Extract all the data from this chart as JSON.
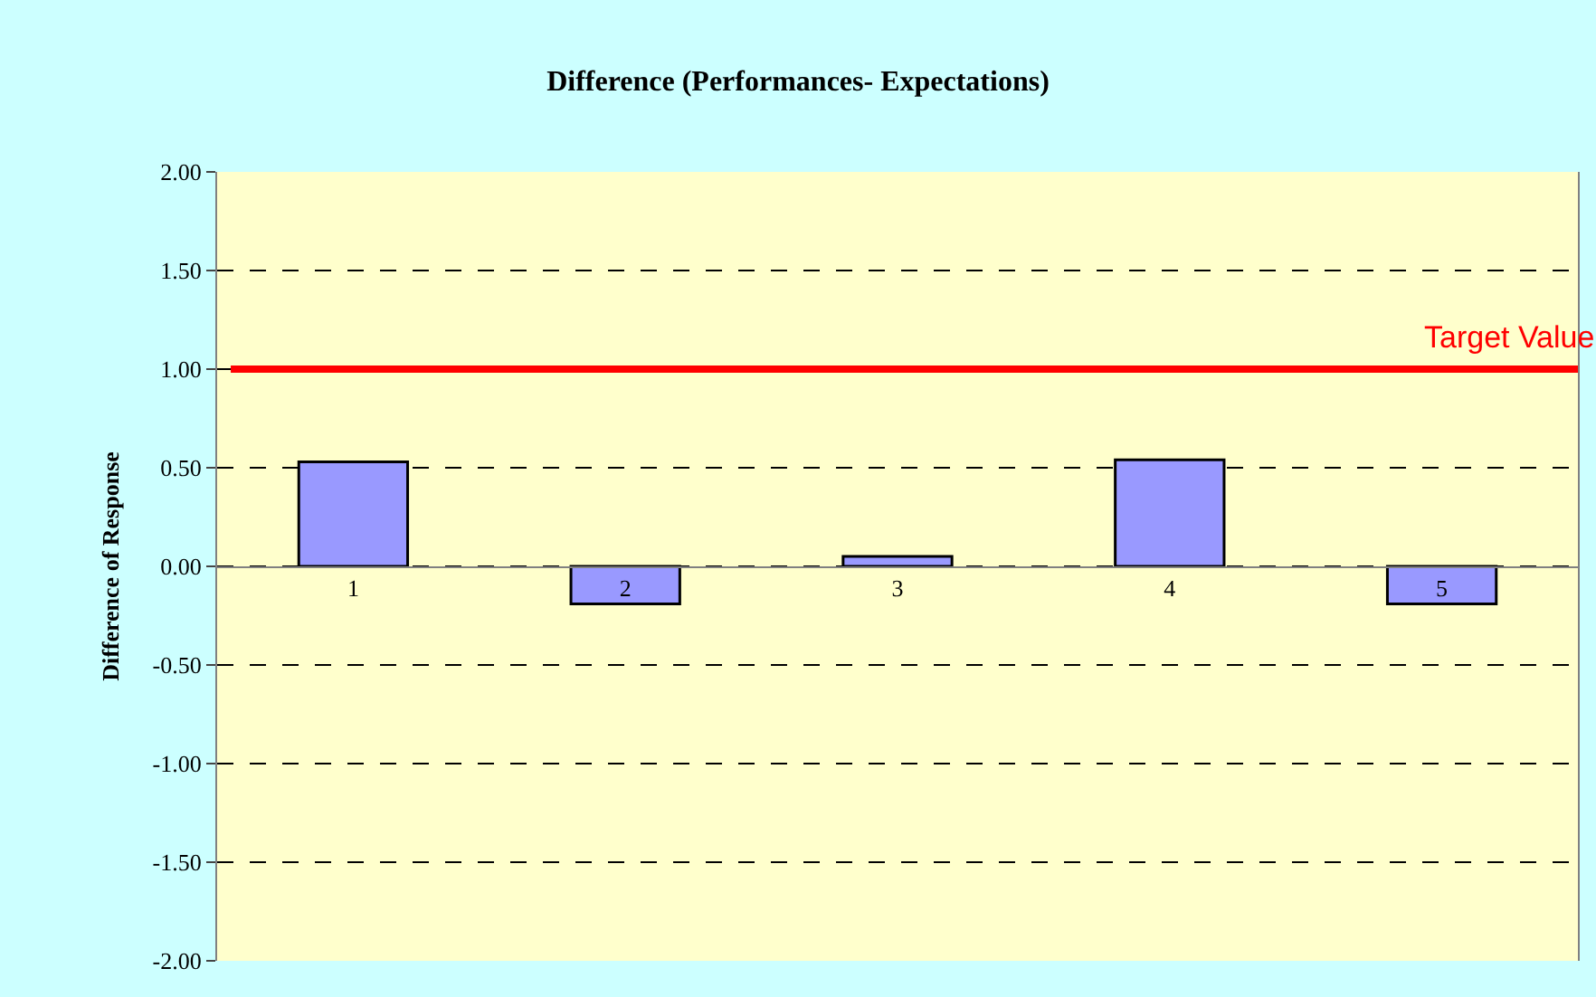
{
  "chart_data": {
    "type": "bar",
    "title": "Difference (Performances- Expectations)",
    "ylabel": "Difference of Response",
    "categories": [
      "1",
      "2",
      "3",
      "4",
      "5"
    ],
    "values": [
      0.53,
      -0.19,
      0.05,
      0.54,
      -0.19
    ],
    "color": "#9999ff",
    "ylim": [
      -2,
      2
    ],
    "yticks": [
      {
        "value": -2,
        "label": "-2.00"
      },
      {
        "value": -1.5,
        "label": "-1.50"
      },
      {
        "value": -1,
        "label": "-1.00"
      },
      {
        "value": -0.5,
        "label": "-0.50"
      },
      {
        "value": 0,
        "label": "0.00"
      },
      {
        "value": 0.5,
        "label": "0.50"
      },
      {
        "value": 1,
        "label": "1.00"
      },
      {
        "value": 1.5,
        "label": "1.50"
      },
      {
        "value": 2,
        "label": "2.00"
      }
    ],
    "grid": "y",
    "ref_lines": [
      {
        "axis": "y",
        "value": 1.0,
        "label": "Target Value",
        "color": "#ff0000",
        "line_style": "solid"
      }
    ]
  }
}
